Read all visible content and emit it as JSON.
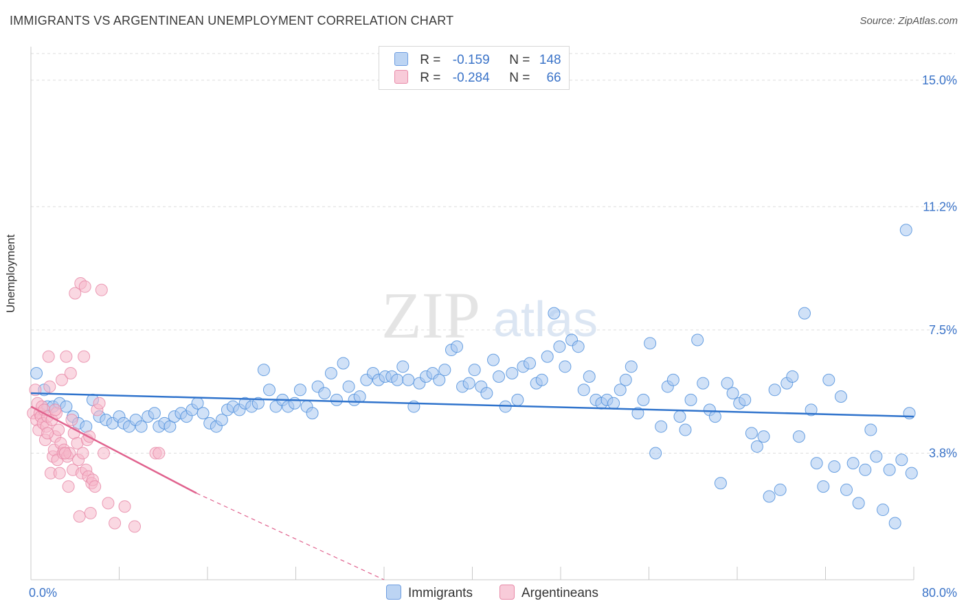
{
  "title": "IMMIGRANTS VS ARGENTINEAN UNEMPLOYMENT CORRELATION CHART",
  "source": "Source: ZipAtlas.com",
  "watermark": {
    "zip": "ZIP",
    "atlas": "atlas"
  },
  "colors": {
    "blue": "#4f8fdc",
    "blue_fill": "#a9c8f0",
    "blue_line": "#2f73cc",
    "pink": "#e88aa8",
    "pink_fill": "#f5b8cb",
    "pink_line": "#e0628e",
    "axis_text": "#3a73c8",
    "grid": "#dddddd"
  },
  "legend": {
    "rows": [
      {
        "r_label": "R =",
        "r_value": "-0.159",
        "n_label": "N =",
        "n_value": "148"
      },
      {
        "r_label": "R =",
        "r_value": "-0.284",
        "n_label": "N =",
        "n_value": "66"
      }
    ]
  },
  "bottom_legend": {
    "immigrants": "Immigrants",
    "argentineans": "Argentineans"
  },
  "chart_data": {
    "type": "scatter",
    "xlabel": "",
    "ylabel": "Unemployment",
    "xlim": [
      0,
      80
    ],
    "ylim": [
      0,
      15.8
    ],
    "x_tick_labels": [
      "0.0%",
      "80.0%"
    ],
    "y_ticks": [
      3.8,
      7.5,
      11.2,
      15.0
    ],
    "y_tick_labels": [
      "3.8%",
      "7.5%",
      "11.2%",
      "15.0%"
    ],
    "series": [
      {
        "name": "Immigrants",
        "trend": {
          "x0": 0,
          "y0": 5.6,
          "x1": 80,
          "y1": 4.9
        },
        "points": [
          [
            0.5,
            6.2
          ],
          [
            1.2,
            5.7
          ],
          [
            1.5,
            5.2
          ],
          [
            2.0,
            5.2
          ],
          [
            2.6,
            5.3
          ],
          [
            3.2,
            5.2
          ],
          [
            3.8,
            4.9
          ],
          [
            4.3,
            4.7
          ],
          [
            5.0,
            4.6
          ],
          [
            5.6,
            5.4
          ],
          [
            6.2,
            4.9
          ],
          [
            6.8,
            4.8
          ],
          [
            7.4,
            4.7
          ],
          [
            8.0,
            4.9
          ],
          [
            8.4,
            4.7
          ],
          [
            8.9,
            4.6
          ],
          [
            9.5,
            4.8
          ],
          [
            10.0,
            4.6
          ],
          [
            10.6,
            4.9
          ],
          [
            11.2,
            5.0
          ],
          [
            11.6,
            4.6
          ],
          [
            12.1,
            4.7
          ],
          [
            12.6,
            4.6
          ],
          [
            13.0,
            4.9
          ],
          [
            13.6,
            5.0
          ],
          [
            14.1,
            4.9
          ],
          [
            14.6,
            5.1
          ],
          [
            15.1,
            5.3
          ],
          [
            15.6,
            5.0
          ],
          [
            16.2,
            4.7
          ],
          [
            16.8,
            4.6
          ],
          [
            17.3,
            4.8
          ],
          [
            17.8,
            5.1
          ],
          [
            18.3,
            5.2
          ],
          [
            18.9,
            5.1
          ],
          [
            19.4,
            5.3
          ],
          [
            20.0,
            5.2
          ],
          [
            20.6,
            5.3
          ],
          [
            21.1,
            6.3
          ],
          [
            21.6,
            5.7
          ],
          [
            22.2,
            5.2
          ],
          [
            22.8,
            5.4
          ],
          [
            23.3,
            5.2
          ],
          [
            23.9,
            5.3
          ],
          [
            24.4,
            5.7
          ],
          [
            25.0,
            5.2
          ],
          [
            25.5,
            5.0
          ],
          [
            26.0,
            5.8
          ],
          [
            26.6,
            5.6
          ],
          [
            27.2,
            6.2
          ],
          [
            27.7,
            5.4
          ],
          [
            28.3,
            6.5
          ],
          [
            28.8,
            5.8
          ],
          [
            29.3,
            5.4
          ],
          [
            29.8,
            5.5
          ],
          [
            30.4,
            6.0
          ],
          [
            31.0,
            6.2
          ],
          [
            31.5,
            6.0
          ],
          [
            32.1,
            6.1
          ],
          [
            32.7,
            6.1
          ],
          [
            33.2,
            6.0
          ],
          [
            33.7,
            6.4
          ],
          [
            34.2,
            6.0
          ],
          [
            34.7,
            5.2
          ],
          [
            35.2,
            5.9
          ],
          [
            35.8,
            6.1
          ],
          [
            36.4,
            6.2
          ],
          [
            37.0,
            6.0
          ],
          [
            37.5,
            6.3
          ],
          [
            38.1,
            6.9
          ],
          [
            38.6,
            7.0
          ],
          [
            39.1,
            5.8
          ],
          [
            39.7,
            5.9
          ],
          [
            40.2,
            6.3
          ],
          [
            40.8,
            5.8
          ],
          [
            41.3,
            5.6
          ],
          [
            41.9,
            6.6
          ],
          [
            42.4,
            6.1
          ],
          [
            43.0,
            5.2
          ],
          [
            43.6,
            6.2
          ],
          [
            44.1,
            5.4
          ],
          [
            44.6,
            6.4
          ],
          [
            45.2,
            6.5
          ],
          [
            45.8,
            5.9
          ],
          [
            46.3,
            6.0
          ],
          [
            46.8,
            6.7
          ],
          [
            47.4,
            8.0
          ],
          [
            47.9,
            7.0
          ],
          [
            48.4,
            6.4
          ],
          [
            49.0,
            7.2
          ],
          [
            49.6,
            7.0
          ],
          [
            50.1,
            5.7
          ],
          [
            50.6,
            6.1
          ],
          [
            51.2,
            5.4
          ],
          [
            51.7,
            5.3
          ],
          [
            52.2,
            5.4
          ],
          [
            52.8,
            5.3
          ],
          [
            53.4,
            5.7
          ],
          [
            53.9,
            6.0
          ],
          [
            54.4,
            6.4
          ],
          [
            55.0,
            5.0
          ],
          [
            55.5,
            5.4
          ],
          [
            56.1,
            7.1
          ],
          [
            56.6,
            3.8
          ],
          [
            57.1,
            4.6
          ],
          [
            57.7,
            5.8
          ],
          [
            58.2,
            6.0
          ],
          [
            58.8,
            4.9
          ],
          [
            59.3,
            4.5
          ],
          [
            59.8,
            5.4
          ],
          [
            60.4,
            7.2
          ],
          [
            60.9,
            5.9
          ],
          [
            61.5,
            5.1
          ],
          [
            62.0,
            4.9
          ],
          [
            62.5,
            2.9
          ],
          [
            63.1,
            5.9
          ],
          [
            63.6,
            5.6
          ],
          [
            64.2,
            5.3
          ],
          [
            64.7,
            5.4
          ],
          [
            65.3,
            4.4
          ],
          [
            65.8,
            4.0
          ],
          [
            66.4,
            4.3
          ],
          [
            66.9,
            2.5
          ],
          [
            67.4,
            5.7
          ],
          [
            67.9,
            2.7
          ],
          [
            68.5,
            5.9
          ],
          [
            69.0,
            6.1
          ],
          [
            69.6,
            4.3
          ],
          [
            70.1,
            8.0
          ],
          [
            70.7,
            5.1
          ],
          [
            71.2,
            3.5
          ],
          [
            71.8,
            2.8
          ],
          [
            72.3,
            6.0
          ],
          [
            72.8,
            3.4
          ],
          [
            73.4,
            5.5
          ],
          [
            73.9,
            2.7
          ],
          [
            74.5,
            3.5
          ],
          [
            75.0,
            2.3
          ],
          [
            75.6,
            3.3
          ],
          [
            76.1,
            4.5
          ],
          [
            76.6,
            3.7
          ],
          [
            77.2,
            2.1
          ],
          [
            77.8,
            3.3
          ],
          [
            78.3,
            1.7
          ],
          [
            78.9,
            3.6
          ],
          [
            79.3,
            10.5
          ],
          [
            79.6,
            5.0
          ],
          [
            79.8,
            3.2
          ]
        ]
      },
      {
        "name": "Argentineans",
        "trend": {
          "x0": 0,
          "y0": 5.2,
          "x1": 15,
          "y1": 2.6,
          "dash_x1": 32,
          "dash_y1": 0.0
        },
        "points": [
          [
            0.2,
            5.0
          ],
          [
            0.4,
            5.7
          ],
          [
            0.5,
            4.8
          ],
          [
            0.6,
            5.3
          ],
          [
            0.7,
            4.5
          ],
          [
            0.8,
            5.0
          ],
          [
            0.9,
            4.9
          ],
          [
            1.0,
            5.2
          ],
          [
            1.1,
            4.7
          ],
          [
            1.2,
            5.1
          ],
          [
            1.3,
            4.2
          ],
          [
            1.4,
            4.6
          ],
          [
            1.5,
            4.9
          ],
          [
            1.6,
            6.7
          ],
          [
            1.7,
            5.8
          ],
          [
            1.8,
            3.2
          ],
          [
            1.9,
            4.8
          ],
          [
            2.0,
            3.7
          ],
          [
            2.1,
            3.9
          ],
          [
            2.2,
            4.3
          ],
          [
            2.3,
            5.0
          ],
          [
            2.4,
            3.6
          ],
          [
            2.5,
            4.5
          ],
          [
            2.6,
            3.2
          ],
          [
            2.7,
            4.1
          ],
          [
            2.8,
            6.0
          ],
          [
            2.9,
            3.8
          ],
          [
            3.0,
            3.9
          ],
          [
            3.2,
            6.7
          ],
          [
            3.3,
            3.7
          ],
          [
            3.4,
            2.8
          ],
          [
            3.5,
            3.8
          ],
          [
            3.6,
            6.2
          ],
          [
            3.7,
            4.8
          ],
          [
            3.8,
            3.3
          ],
          [
            3.9,
            4.4
          ],
          [
            4.0,
            8.6
          ],
          [
            4.2,
            4.1
          ],
          [
            4.3,
            3.6
          ],
          [
            4.4,
            1.9
          ],
          [
            4.5,
            8.9
          ],
          [
            4.6,
            3.2
          ],
          [
            4.7,
            3.8
          ],
          [
            4.8,
            6.7
          ],
          [
            4.9,
            8.8
          ],
          [
            5.0,
            3.3
          ],
          [
            5.1,
            4.2
          ],
          [
            5.2,
            3.1
          ],
          [
            5.3,
            4.3
          ],
          [
            5.4,
            2.0
          ],
          [
            5.5,
            2.9
          ],
          [
            5.6,
            3.0
          ],
          [
            5.8,
            2.8
          ],
          [
            6.0,
            5.1
          ],
          [
            6.2,
            5.3
          ],
          [
            6.4,
            8.7
          ],
          [
            6.6,
            3.8
          ],
          [
            7.0,
            2.3
          ],
          [
            7.6,
            1.7
          ],
          [
            8.5,
            2.2
          ],
          [
            9.4,
            1.6
          ],
          [
            11.3,
            3.8
          ],
          [
            11.6,
            3.8
          ],
          [
            3.1,
            3.8
          ],
          [
            1.5,
            4.4
          ],
          [
            2.2,
            5.1
          ]
        ]
      }
    ]
  }
}
